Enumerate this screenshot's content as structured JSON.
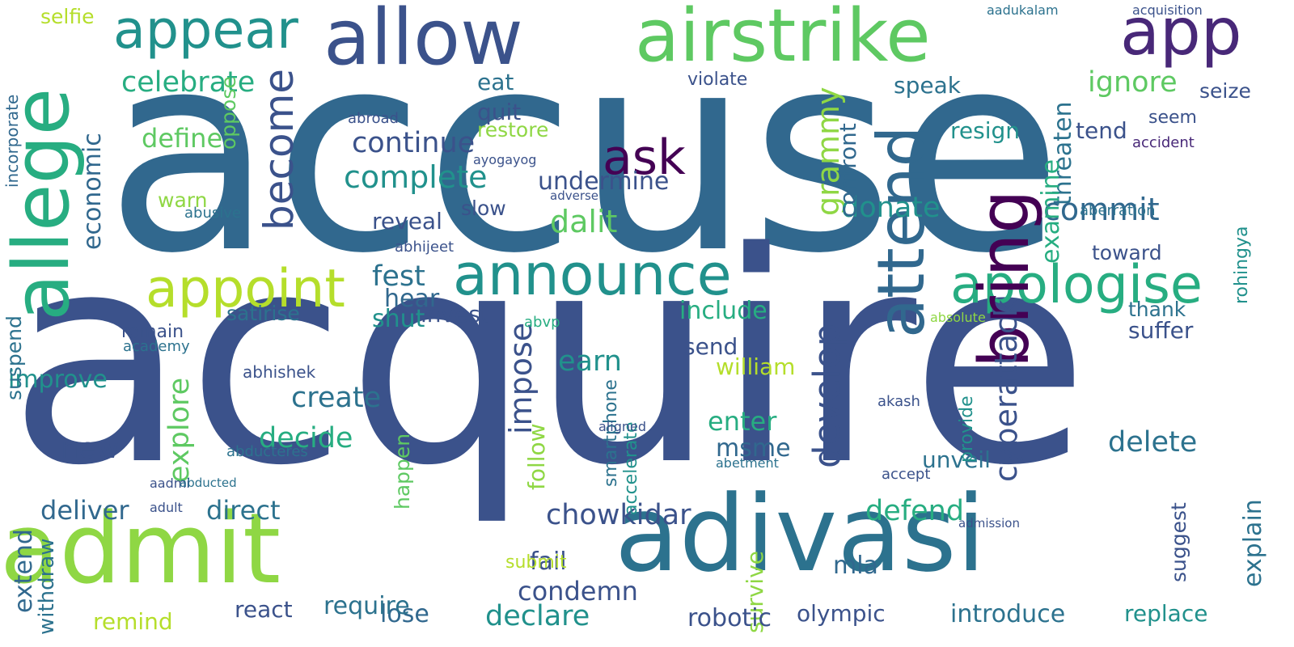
{
  "palette": {
    "background": "#ffffff",
    "colors": [
      "#3b528b",
      "#31688e",
      "#2c728e",
      "#21918c",
      "#27ad81",
      "#5ec962",
      "#8fd744",
      "#b5de2b",
      "#440154",
      "#482878"
    ]
  },
  "words": [
    {
      "text": "accuse",
      "color": "#31688e"
    },
    {
      "text": "acquire",
      "color": "#3b528b"
    },
    {
      "text": "allege",
      "color": "#27ad81"
    },
    {
      "text": "allow",
      "color": "#3b528b"
    },
    {
      "text": "airstrike",
      "color": "#5ec962"
    },
    {
      "text": "app",
      "color": "#482878"
    },
    {
      "text": "appear",
      "color": "#21918c"
    },
    {
      "text": "admit",
      "color": "#8fd744"
    },
    {
      "text": "adivasi",
      "color": "#2c728e"
    },
    {
      "text": "announce",
      "color": "#21918c"
    },
    {
      "text": "apologise",
      "color": "#27ad81"
    },
    {
      "text": "appoint",
      "color": "#b5de2b"
    },
    {
      "text": "attend",
      "color": "#31688e"
    },
    {
      "text": "bring",
      "color": "#440154"
    },
    {
      "text": "become",
      "color": "#3b528b"
    },
    {
      "text": "celebrate",
      "color": "#27ad81"
    },
    {
      "text": "ignore",
      "color": "#5ec962"
    },
    {
      "text": "ask",
      "color": "#440154"
    },
    {
      "text": "complete",
      "color": "#21918c"
    },
    {
      "text": "continue",
      "color": "#3b528b"
    },
    {
      "text": "dalit",
      "color": "#5ec962"
    },
    {
      "text": "grammy",
      "color": "#8fd744"
    },
    {
      "text": "define",
      "color": "#5ec962"
    },
    {
      "text": "economic",
      "color": "#31688e"
    },
    {
      "text": "fest",
      "color": "#2c728e"
    },
    {
      "text": "hear",
      "color": "#31688e"
    },
    {
      "text": "invest",
      "color": "#3b528b"
    },
    {
      "text": "include",
      "color": "#27ad81"
    },
    {
      "text": "shut",
      "color": "#21918c"
    },
    {
      "text": "impose",
      "color": "#3b528b"
    },
    {
      "text": "earn",
      "color": "#21918c"
    },
    {
      "text": "create",
      "color": "#2c728e"
    },
    {
      "text": "develop",
      "color": "#3b528b"
    },
    {
      "text": "donate",
      "color": "#21918c"
    },
    {
      "text": "commit",
      "color": "#31688e"
    },
    {
      "text": "speak",
      "color": "#2c728e"
    },
    {
      "text": "resign",
      "color": "#21918c"
    },
    {
      "text": "tend",
      "color": "#3b528b"
    },
    {
      "text": "threaten",
      "color": "#2c728e"
    },
    {
      "text": "cyberattack",
      "color": "#3b528b"
    },
    {
      "text": "examine",
      "color": "#27ad81"
    },
    {
      "text": "improve",
      "color": "#21918c"
    },
    {
      "text": "suspend",
      "color": "#2c728e"
    },
    {
      "text": "new",
      "color": "#3b528b"
    },
    {
      "text": "decide",
      "color": "#27ad81"
    },
    {
      "text": "explore",
      "color": "#5ec962"
    },
    {
      "text": "deliver",
      "color": "#31688e"
    },
    {
      "text": "direct",
      "color": "#2c728e"
    },
    {
      "text": "chowkidar",
      "color": "#3b528b"
    },
    {
      "text": "defend",
      "color": "#27ad81"
    },
    {
      "text": "delete",
      "color": "#2c728e"
    },
    {
      "text": "fail",
      "color": "#3b528b"
    },
    {
      "text": "condemn",
      "color": "#3b528b"
    },
    {
      "text": "declare",
      "color": "#21918c"
    },
    {
      "text": "lose",
      "color": "#31688e"
    },
    {
      "text": "react",
      "color": "#3b528b"
    },
    {
      "text": "require",
      "color": "#2c728e"
    },
    {
      "text": "olympic",
      "color": "#3b528b"
    },
    {
      "text": "introduce",
      "color": "#2c728e"
    },
    {
      "text": "replace",
      "color": "#21918c"
    },
    {
      "text": "suggest",
      "color": "#3b528b"
    },
    {
      "text": "enter",
      "color": "#27ad81"
    },
    {
      "text": "msme",
      "color": "#31688e"
    },
    {
      "text": "mla",
      "color": "#31688e"
    },
    {
      "text": "unveil",
      "color": "#2c728e"
    },
    {
      "text": "survive",
      "color": "#8fd744"
    },
    {
      "text": "william",
      "color": "#b5de2b"
    },
    {
      "text": "suffer",
      "color": "#3b528b"
    },
    {
      "text": "remind",
      "color": "#b5de2b"
    },
    {
      "text": "extend",
      "color": "#31688e"
    },
    {
      "text": "withdraw",
      "color": "#2c728e"
    },
    {
      "text": "send",
      "color": "#3b528b"
    },
    {
      "text": "slow",
      "color": "#3b528b"
    },
    {
      "text": "reveal",
      "color": "#3b528b"
    },
    {
      "text": "quit",
      "color": "#3b528b"
    },
    {
      "text": "eat",
      "color": "#2c728e"
    },
    {
      "text": "undermine",
      "color": "#3b528b"
    },
    {
      "text": "robotic",
      "color": "#3b528b"
    },
    {
      "text": "seize",
      "color": "#3b528b"
    },
    {
      "text": "toward",
      "color": "#3b528b"
    },
    {
      "text": "thank",
      "color": "#2c728e"
    },
    {
      "text": "provide",
      "color": "#21918c"
    },
    {
      "text": "accelerate",
      "color": "#21918c"
    },
    {
      "text": "follow",
      "color": "#8fd744"
    },
    {
      "text": "explain",
      "color": "#2c728e"
    },
    {
      "text": "rohingya",
      "color": "#21918c"
    },
    {
      "text": "confront",
      "color": "#31688e"
    },
    {
      "text": "seem",
      "color": "#3b528b"
    },
    {
      "text": "violate",
      "color": "#3b528b"
    },
    {
      "text": "smartphone",
      "color": "#2c728e"
    },
    {
      "text": "oppose",
      "color": "#5ec962"
    },
    {
      "text": "incorporate",
      "color": "#31688e"
    },
    {
      "text": "selfie",
      "color": "#b5de2b"
    },
    {
      "text": "restore",
      "color": "#8fd744"
    },
    {
      "text": "happen",
      "color": "#5ec962"
    },
    {
      "text": "submit",
      "color": "#b5de2b"
    },
    {
      "text": "warn",
      "color": "#8fd744"
    },
    {
      "text": "remain",
      "color": "#3b528b"
    },
    {
      "text": "satirise",
      "color": "#2c728e"
    },
    {
      "text": "abhishek",
      "color": "#3b528b"
    },
    {
      "text": "abhijeet",
      "color": "#3b528b"
    },
    {
      "text": "aberration",
      "color": "#2c728e"
    },
    {
      "text": "accident",
      "color": "#482878"
    },
    {
      "text": "abroad",
      "color": "#3b528b"
    },
    {
      "text": "academy",
      "color": "#2c728e"
    },
    {
      "text": "aadmi",
      "color": "#3b528b"
    },
    {
      "text": "abvp",
      "color": "#27ad81"
    },
    {
      "text": "absolute",
      "color": "#8fd744"
    },
    {
      "text": "accept",
      "color": "#3b528b"
    },
    {
      "text": "abusive",
      "color": "#2c728e"
    },
    {
      "text": "ayogayog",
      "color": "#3b528b"
    },
    {
      "text": "akash",
      "color": "#3b528b"
    },
    {
      "text": "abducted",
      "color": "#2c728e"
    },
    {
      "text": "abducteres",
      "color": "#2c728e"
    },
    {
      "text": "admission",
      "color": "#3b528b"
    },
    {
      "text": "adverse",
      "color": "#3b528b"
    },
    {
      "text": "abetment",
      "color": "#2c728e"
    },
    {
      "text": "adult",
      "color": "#3b528b"
    },
    {
      "text": "aligned",
      "color": "#3b528b"
    },
    {
      "text": "acquisition",
      "color": "#3b528b"
    },
    {
      "text": "aadukalam",
      "color": "#2c728e"
    }
  ]
}
